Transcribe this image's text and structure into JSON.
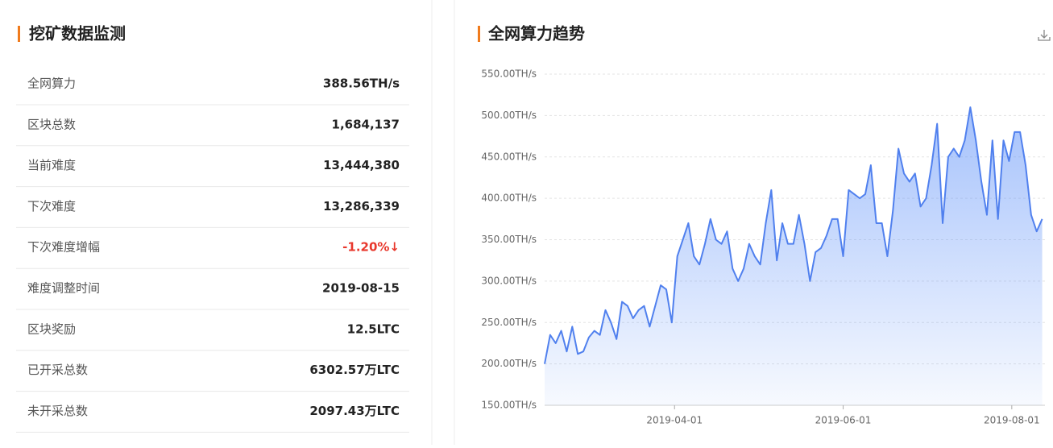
{
  "left_panel": {
    "title": "挖矿数据监测",
    "rows": [
      [
        "全网算力",
        "388.56TH/s"
      ],
      [
        "区块总数",
        "1,684,137"
      ],
      [
        "当前难度",
        "13,444,380"
      ],
      [
        "下次难度",
        "13,286,339"
      ],
      [
        "下次难度增幅",
        "-1.20%↓"
      ],
      [
        "难度调整时间",
        "2019-08-15"
      ],
      [
        "区块奖励",
        "12.5LTC"
      ],
      [
        "已开采总数",
        "6302.57万LTC"
      ],
      [
        "未开采总数",
        "2097.43万LTC"
      ]
    ]
  },
  "chart_data": {
    "type": "area",
    "title": "全网算力趋势",
    "color": "#5080ee",
    "x": [
      "2019-02-13",
      "2019-02-15",
      "2019-02-17",
      "2019-02-19",
      "2019-02-21",
      "2019-02-23",
      "2019-02-25",
      "2019-02-27",
      "2019-03-01",
      "2019-03-03",
      "2019-03-05",
      "2019-03-07",
      "2019-03-09",
      "2019-03-11",
      "2019-03-13",
      "2019-03-15",
      "2019-03-17",
      "2019-03-19",
      "2019-03-21",
      "2019-03-23",
      "2019-03-25",
      "2019-03-27",
      "2019-03-29",
      "2019-03-31",
      "2019-04-02",
      "2019-04-04",
      "2019-04-06",
      "2019-04-08",
      "2019-04-10",
      "2019-04-12",
      "2019-04-14",
      "2019-04-16",
      "2019-04-18",
      "2019-04-20",
      "2019-04-22",
      "2019-04-24",
      "2019-04-26",
      "2019-04-28",
      "2019-04-30",
      "2019-05-02",
      "2019-05-04",
      "2019-05-06",
      "2019-05-08",
      "2019-05-10",
      "2019-05-12",
      "2019-05-14",
      "2019-05-16",
      "2019-05-18",
      "2019-05-20",
      "2019-05-22",
      "2019-05-24",
      "2019-05-26",
      "2019-05-28",
      "2019-05-30",
      "2019-06-01",
      "2019-06-03",
      "2019-06-05",
      "2019-06-07",
      "2019-06-09",
      "2019-06-11",
      "2019-06-13",
      "2019-06-15",
      "2019-06-17",
      "2019-06-19",
      "2019-06-21",
      "2019-06-23",
      "2019-06-25",
      "2019-06-27",
      "2019-06-29",
      "2019-07-01",
      "2019-07-03",
      "2019-07-05",
      "2019-07-07",
      "2019-07-09",
      "2019-07-11",
      "2019-07-13",
      "2019-07-15",
      "2019-07-17",
      "2019-07-19",
      "2019-07-21",
      "2019-07-23",
      "2019-07-25",
      "2019-07-27",
      "2019-07-29",
      "2019-07-31",
      "2019-08-02",
      "2019-08-04",
      "2019-08-06",
      "2019-08-08",
      "2019-08-10",
      "2019-08-12"
    ],
    "values": [
      200,
      235,
      225,
      240,
      215,
      245,
      212,
      215,
      232,
      240,
      235,
      265,
      250,
      230,
      275,
      270,
      255,
      265,
      270,
      245,
      270,
      295,
      290,
      250,
      330,
      350,
      370,
      330,
      320,
      345,
      375,
      350,
      345,
      360,
      315,
      300,
      315,
      345,
      330,
      320,
      370,
      410,
      325,
      370,
      345,
      345,
      380,
      345,
      300,
      335,
      340,
      355,
      375,
      375,
      330,
      410,
      405,
      400,
      405,
      440,
      370,
      370,
      330,
      385,
      460,
      430,
      420,
      430,
      390,
      400,
      440,
      490,
      370,
      450,
      460,
      450,
      470,
      510,
      470,
      420,
      380,
      470,
      375,
      470,
      445,
      480,
      480,
      440,
      380,
      360,
      375
    ],
    "xlim": [
      "2019-02-13",
      "2019-08-13"
    ],
    "xticks": [
      "2019-04-01",
      "2019-06-01",
      "2019-08-01"
    ],
    "ylim": [
      150,
      550
    ],
    "yticks": [
      {
        "value": 150,
        "label": "150.00TH/s"
      },
      {
        "value": 200,
        "label": "200.00TH/s"
      },
      {
        "value": 250,
        "label": "250.00TH/s"
      },
      {
        "value": 300,
        "label": "300.00TH/s"
      },
      {
        "value": 350,
        "label": "350.00TH/s"
      },
      {
        "value": 400,
        "label": "400.00TH/s"
      },
      {
        "value": 450,
        "label": "450.00TH/s"
      },
      {
        "value": 500,
        "label": "500.00TH/s"
      },
      {
        "value": 550,
        "label": "550.00TH/s"
      }
    ],
    "grid": true
  }
}
